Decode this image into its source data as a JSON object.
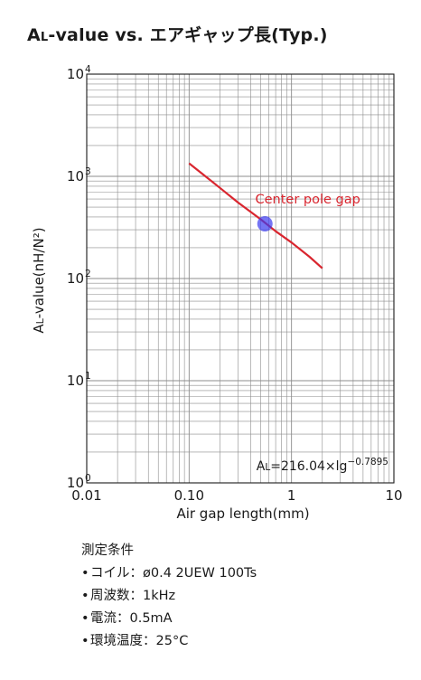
{
  "header": {
    "title_lead": "A",
    "title_sub": "L",
    "title_rest": "-value vs. エアギャップ長(Typ.)"
  },
  "chart_data": {
    "type": "line",
    "title": "AL-value vs. エアギャップ長(Typ.)",
    "xlabel": "Air gap length(mm)",
    "ylabel_lead": "A",
    "ylabel_sub": "L",
    "ylabel_rest": "-value(nH/N²)",
    "xscale": "log",
    "yscale": "log",
    "xlim": [
      0.01,
      10
    ],
    "ylim": [
      1,
      10000
    ],
    "grid": true,
    "x_ticks": [
      {
        "value": 0.01,
        "label": "0.01"
      },
      {
        "value": 0.1,
        "label": "0.10"
      },
      {
        "value": 1,
        "label": "1"
      },
      {
        "value": 10,
        "label": "10"
      }
    ],
    "y_ticks": [
      {
        "value": 1,
        "base": "10",
        "exp": "0"
      },
      {
        "value": 10,
        "base": "10",
        "exp": "1"
      },
      {
        "value": 100,
        "base": "10",
        "exp": "2"
      },
      {
        "value": 1000,
        "base": "10",
        "exp": "3"
      },
      {
        "value": 10000,
        "base": "10",
        "exp": "4"
      }
    ],
    "series": [
      {
        "name": "Center pole gap",
        "color": "#d9262f",
        "x": [
          0.1,
          0.15,
          0.2,
          0.3,
          0.5,
          0.7,
          1.0,
          1.5,
          2.0
        ],
        "y": [
          1340,
          970,
          770,
          555,
          380,
          290,
          225,
          163,
          126
        ]
      }
    ],
    "marker": {
      "x": 0.55,
      "y": 343,
      "color": "#3b3bf0"
    },
    "formula": {
      "lead": "A",
      "sub": "L",
      "rest": "=216.04×lg",
      "exp": "−0.7895"
    }
  },
  "conditions": {
    "heading": "測定条件",
    "bullet": "•",
    "items": [
      "コイル：ø0.4 2UEW 100Ts",
      "周波数：1kHz",
      "電流：0.5mA",
      "環境温度：25°C"
    ]
  },
  "colors": {
    "curve": "#d9262f",
    "marker": "#3b3bf0",
    "grid": "#8c8c8c",
    "frame": "#1a1a1a",
    "text": "#1a1a1a"
  }
}
